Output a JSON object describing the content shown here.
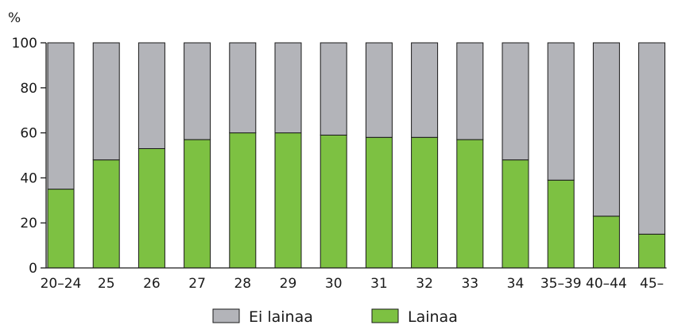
{
  "chart_data": {
    "type": "bar",
    "stacked": true,
    "y_unit_label": "%",
    "ylim": [
      0,
      100
    ],
    "y_ticks": [
      0,
      20,
      40,
      60,
      80,
      100
    ],
    "grid": false,
    "legend_position": "bottom",
    "categories": [
      "20–24",
      "25",
      "26",
      "27",
      "28",
      "29",
      "30",
      "31",
      "32",
      "33",
      "34",
      "35–39",
      "40–44",
      "45–"
    ],
    "series": [
      {
        "name": "Lainaa",
        "color": "#7dc142",
        "values": [
          35,
          48,
          53,
          57,
          60,
          60,
          59,
          58,
          58,
          57,
          48,
          39,
          23,
          15
        ]
      },
      {
        "name": "Ei lainaa",
        "color": "#b3b4b9",
        "values": [
          65,
          52,
          47,
          43,
          40,
          40,
          41,
          42,
          42,
          43,
          52,
          61,
          77,
          85
        ]
      }
    ],
    "legend_order": [
      "Ei lainaa",
      "Lainaa"
    ]
  }
}
